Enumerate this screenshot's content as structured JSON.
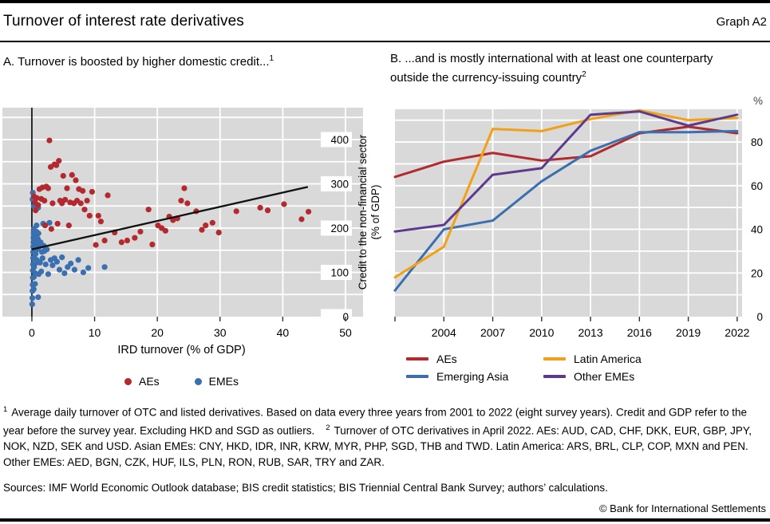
{
  "header": {
    "title": "Turnover of interest rate derivatives",
    "graph_label": "Graph A2"
  },
  "panels": {
    "a": {
      "title": "A. Turnover is boosted by higher domestic credit...",
      "footnote_marker": "1"
    },
    "b": {
      "title": "B. ...and is mostly international with at least one counterparty outside the currency-issuing country",
      "footnote_marker": "2"
    }
  },
  "colors": {
    "aes_red": "#b2292e",
    "emes_blue": "#3a6fb0",
    "latam_orange": "#f2a016",
    "other_emes_purple": "#5c3a8e",
    "plot_bg": "#d9d9d9",
    "grid": "#ffffff",
    "trend": "#111111"
  },
  "chart_data": [
    {
      "type": "scatter",
      "panel": "A",
      "title": "A. Turnover is boosted by higher domestic credit...",
      "xlabel": "IRD turnover (% of GDP)",
      "ylabel": "Credit to the non-financial sector (% of GDP)",
      "ylabel_lines": [
        "Credit to the non-financial sector",
        "(% of GDP)"
      ],
      "xlim": [
        -4.7,
        52.8
      ],
      "ylim": [
        0,
        472
      ],
      "xticks": [
        0,
        10,
        20,
        30,
        40,
        50
      ],
      "yticks": [
        0,
        100,
        200,
        300,
        400
      ],
      "grid_x": [
        10,
        20,
        30,
        40,
        50
      ],
      "grid_y_step": 50,
      "trendline": {
        "x1": 0,
        "y1": 152,
        "x2": 44,
        "y2": 293
      },
      "series": [
        {
          "name": "AEs",
          "color": "#b2292e",
          "points": [
            [
              0.3,
              272
            ],
            [
              0.5,
              258
            ],
            [
              0.6,
              240
            ],
            [
              0.8,
              268
            ],
            [
              1.0,
              252
            ],
            [
              1.2,
              288
            ],
            [
              1.5,
              266
            ],
            [
              1.7,
              292
            ],
            [
              2.0,
              262
            ],
            [
              2.1,
              206
            ],
            [
              2.3,
              294
            ],
            [
              2.6,
              290
            ],
            [
              2.8,
              398
            ],
            [
              3.0,
              338
            ],
            [
              3.1,
              198
            ],
            [
              3.3,
              256
            ],
            [
              3.6,
              344
            ],
            [
              3.9,
              342
            ],
            [
              4.1,
              210
            ],
            [
              4.3,
              352
            ],
            [
              4.5,
              262
            ],
            [
              4.8,
              256
            ],
            [
              5.0,
              318
            ],
            [
              5.3,
              264
            ],
            [
              5.6,
              290
            ],
            [
              5.9,
              206
            ],
            [
              6.1,
              258
            ],
            [
              6.4,
              320
            ],
            [
              6.7,
              256
            ],
            [
              7.0,
              308
            ],
            [
              7.2,
              262
            ],
            [
              7.5,
              288
            ],
            [
              7.8,
              256
            ],
            [
              8.1,
              284
            ],
            [
              8.4,
              242
            ],
            [
              8.8,
              262
            ],
            [
              9.2,
              228
            ],
            [
              9.6,
              282
            ],
            [
              10.2,
              162
            ],
            [
              10.6,
              228
            ],
            [
              11.0,
              215
            ],
            [
              11.6,
              172
            ],
            [
              12.1,
              274
            ],
            [
              13.2,
              190
            ],
            [
              14.3,
              168
            ],
            [
              15.2,
              172
            ],
            [
              16.4,
              178
            ],
            [
              17.3,
              192
            ],
            [
              18.6,
              242
            ],
            [
              19.2,
              163
            ],
            [
              20.1,
              206
            ],
            [
              20.7,
              200
            ],
            [
              21.3,
              194
            ],
            [
              21.9,
              226
            ],
            [
              22.5,
              218
            ],
            [
              23.2,
              222
            ],
            [
              23.8,
              262
            ],
            [
              24.3,
              290
            ],
            [
              24.8,
              256
            ],
            [
              26.2,
              238
            ],
            [
              27.1,
              196
            ],
            [
              27.7,
              206
            ],
            [
              28.8,
              212
            ],
            [
              29.8,
              190
            ],
            [
              32.6,
              238
            ],
            [
              36.4,
              246
            ],
            [
              37.6,
              240
            ],
            [
              40.2,
              254
            ],
            [
              43.0,
              220
            ],
            [
              44.1,
              237
            ]
          ]
        },
        {
          "name": "EMEs",
          "color": "#3a6fb0",
          "points": [
            [
              0.05,
              28
            ],
            [
              0.08,
              42
            ],
            [
              0.1,
              58
            ],
            [
              0.1,
              265
            ],
            [
              0.12,
              72
            ],
            [
              0.15,
              88
            ],
            [
              0.15,
              104
            ],
            [
              0.15,
              280
            ],
            [
              0.18,
              118
            ],
            [
              0.2,
              132
            ],
            [
              0.2,
              146
            ],
            [
              0.22,
              158
            ],
            [
              0.25,
              168
            ],
            [
              0.25,
              178
            ],
            [
              0.28,
              188
            ],
            [
              0.3,
              198
            ],
            [
              0.3,
              62
            ],
            [
              0.3,
              250
            ],
            [
              0.33,
              90
            ],
            [
              0.35,
              112
            ],
            [
              0.38,
              134
            ],
            [
              0.4,
              148
            ],
            [
              0.4,
              160
            ],
            [
              0.43,
              170
            ],
            [
              0.45,
              182
            ],
            [
              0.48,
              192
            ],
            [
              0.5,
              74
            ],
            [
              0.52,
              98
            ],
            [
              0.55,
              120
            ],
            [
              0.6,
              142
            ],
            [
              0.62,
              156
            ],
            [
              0.65,
              168
            ],
            [
              0.7,
              178
            ],
            [
              0.72,
              192
            ],
            [
              0.75,
              206
            ],
            [
              0.8,
              128
            ],
            [
              0.85,
              152
            ],
            [
              0.9,
              164
            ],
            [
              0.95,
              176
            ],
            [
              1.0,
              44
            ],
            [
              1.0,
              246
            ],
            [
              1.05,
              188
            ],
            [
              1.1,
              96
            ],
            [
              1.2,
              158
            ],
            [
              1.3,
              122
            ],
            [
              1.4,
              168
            ],
            [
              1.5,
              102
            ],
            [
              1.6,
              146
            ],
            [
              1.7,
              132
            ],
            [
              1.8,
              210
            ],
            [
              1.9,
              160
            ],
            [
              2.0,
              148
            ],
            [
              2.2,
              118
            ],
            [
              2.4,
              152
            ],
            [
              2.6,
              96
            ],
            [
              2.8,
              212
            ],
            [
              3.0,
              128
            ],
            [
              3.3,
              116
            ],
            [
              3.6,
              132
            ],
            [
              4.0,
              124
            ],
            [
              4.4,
              106
            ],
            [
              4.8,
              134
            ],
            [
              5.2,
              98
            ],
            [
              5.7,
              112
            ],
            [
              6.2,
              120
            ],
            [
              6.8,
              106
            ],
            [
              7.4,
              128
            ],
            [
              8.2,
              100
            ],
            [
              9.0,
              110
            ],
            [
              11.6,
              112
            ]
          ]
        }
      ]
    },
    {
      "type": "line",
      "panel": "B",
      "title": "B. ...and is mostly international with at least one counterparty outside the currency-issuing country",
      "unit_label": "%",
      "x": [
        2001,
        2004,
        2007,
        2010,
        2013,
        2016,
        2019,
        2022
      ],
      "xticks_labeled": [
        2004,
        2007,
        2010,
        2013,
        2016,
        2019,
        2022
      ],
      "xlim": [
        2001,
        2022.3
      ],
      "ylim": [
        0,
        95
      ],
      "yticks": [
        0,
        20,
        40,
        60,
        80
      ],
      "grid_x": [
        2004,
        2007,
        2010,
        2013,
        2016,
        2019,
        2022
      ],
      "grid_y_step": 10,
      "series": [
        {
          "name": "AEs",
          "color": "#b2292e",
          "values": [
            64,
            71,
            75,
            71.5,
            73.5,
            84,
            87,
            84
          ]
        },
        {
          "name": "Emerging Asia",
          "color": "#3a6fb0",
          "values": [
            12,
            40,
            44,
            62,
            76,
            84.5,
            84.5,
            85
          ]
        },
        {
          "name": "Latin America",
          "color": "#f2a016",
          "values": [
            18,
            32,
            86,
            85,
            90.5,
            94.5,
            90,
            91
          ]
        },
        {
          "name": "Other EMEs",
          "color": "#5c3a8e",
          "values": [
            39,
            42,
            65,
            68,
            92.5,
            94,
            87.5,
            92.5
          ]
        }
      ],
      "legend_order": [
        "AEs",
        "Latin America",
        "Emerging Asia",
        "Other EMEs"
      ]
    }
  ],
  "footnotes": [
    {
      "marker": "1",
      "text": "Average daily turnover of OTC and listed derivatives. Based on data every three years from 2001 to 2022 (eight survey years). Credit and GDP refer to the year before the survey year. Excluding HKD and SGD as outliers."
    },
    {
      "marker": "2",
      "text": "Turnover of OTC derivatives in April 2022. AEs: AUD, CAD, CHF, DKK, EUR, GBP, JPY, NOK, NZD, SEK and USD. Asian EMEs: CNY, HKD, IDR, INR, KRW, MYR, PHP, SGD, THB and TWD. Latin America: ARS, BRL, CLP, COP, MXN and PEN. Other EMEs: AED, BGN, CZK, HUF, ILS, PLN, RON, RUB, SAR, TRY and ZAR."
    }
  ],
  "sources": "Sources: IMF World Economic Outlook database; BIS credit statistics; BIS Triennial Central Bank Survey; authors’ calculations.",
  "copyright": "© Bank for International Settlements"
}
